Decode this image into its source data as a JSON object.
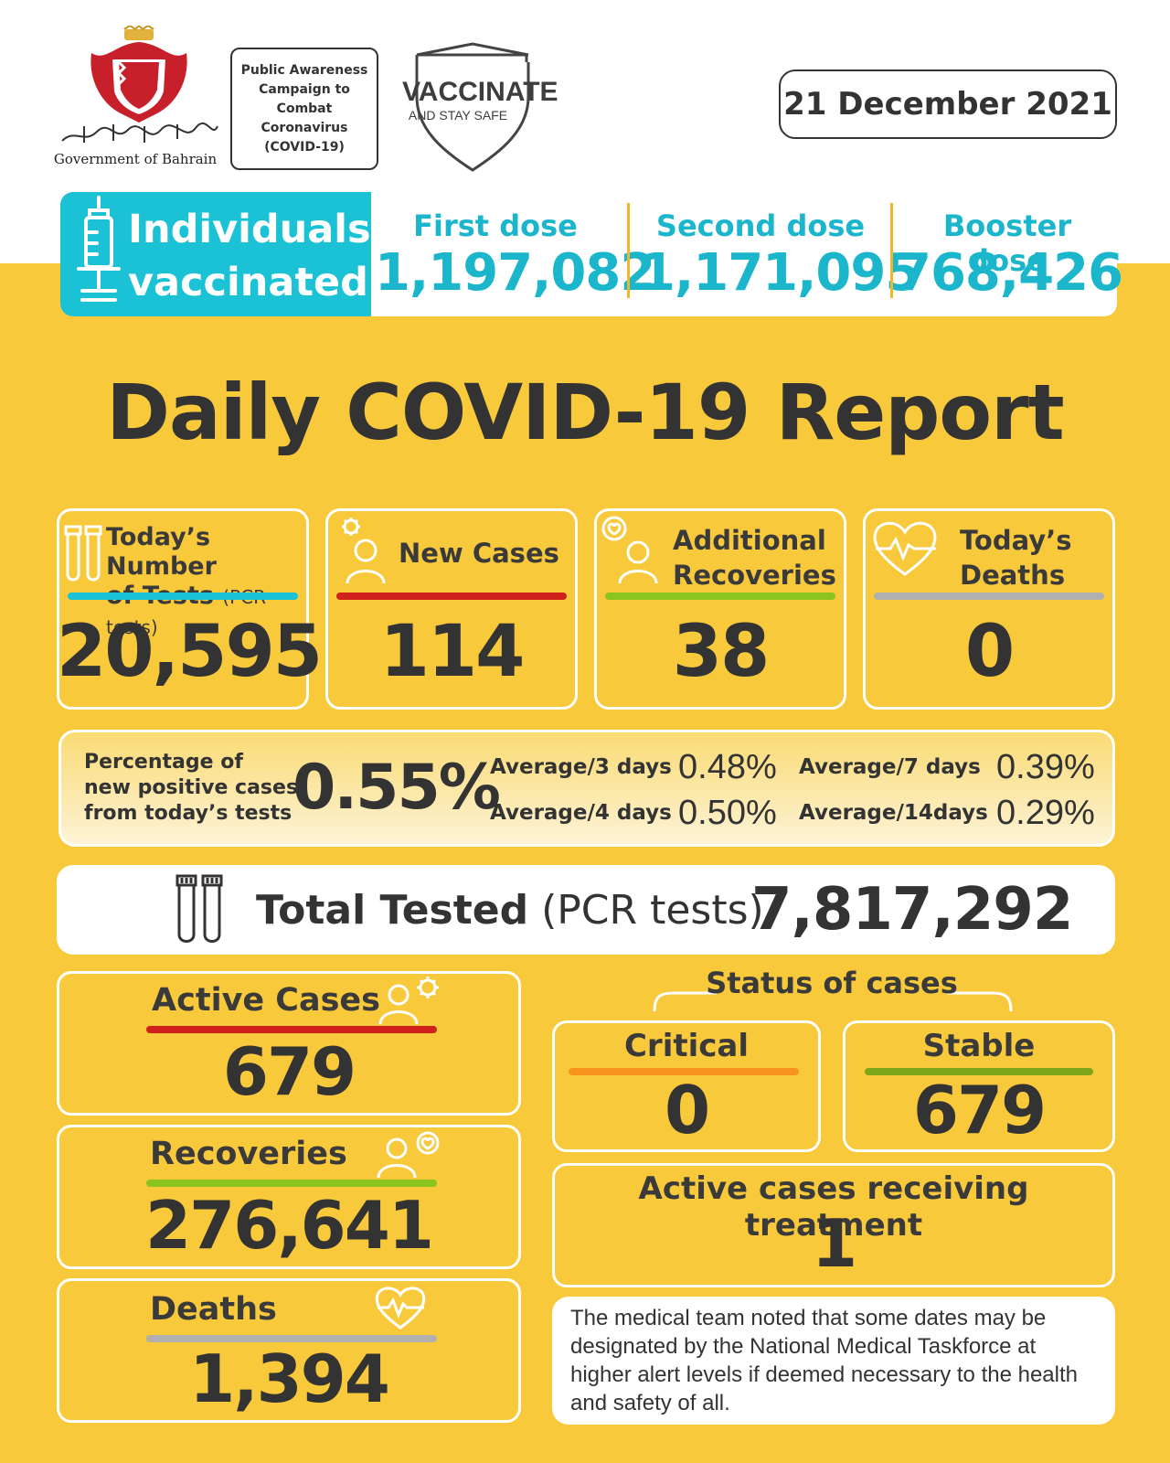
{
  "header": {
    "government_name": "Government of Bahrain",
    "government_name_arabic": "حكومة مملكة البحرين",
    "campaign_text": "Public Awareness Campaign to Combat Coronavirus (COVID-19)",
    "vaccinate_title": "VACCINATE",
    "vaccinate_subtitle": "AND STAY SAFE",
    "date": "21 December 2021"
  },
  "vaccination": {
    "title_line1": "Individuals",
    "title_line2": "vaccinated",
    "first_dose_label": "First dose",
    "first_dose_value": "1,197,082",
    "second_dose_label": "Second dose",
    "second_dose_value": "1,171,095",
    "booster_dose_label": "Booster dose",
    "booster_dose_value": "768,426"
  },
  "report_title": "Daily COVID-19 Report",
  "daily": {
    "tests_label_line1": "Today’s Number",
    "tests_label_line2": "of Tests",
    "tests_label_note": "(PCR tests)",
    "tests_value": "20,595",
    "new_cases_label": "New Cases",
    "new_cases_value": "114",
    "recoveries_label_line1": "Additional",
    "recoveries_label_line2": "Recoveries",
    "recoveries_value": "38",
    "deaths_label_line1": "Today’s",
    "deaths_label_line2": "Deaths",
    "deaths_value": "0"
  },
  "percentage": {
    "label_line1": "Percentage of",
    "label_line2": "new positive cases",
    "label_line3": "from today’s tests",
    "value": "0.55%",
    "avg3_label": "Average/3 days",
    "avg3_value": "0.48%",
    "avg4_label": "Average/4 days",
    "avg4_value": "0.50%",
    "avg7_label": "Average/7 days",
    "avg7_value": "0.39%",
    "avg14_label": "Average/14days",
    "avg14_value": "0.29%"
  },
  "total_tested": {
    "label": "Total Tested",
    "note": "(PCR tests)",
    "value": "7,817,292"
  },
  "totals": {
    "active_label": "Active Cases",
    "active_value": "679",
    "recoveries_label": "Recoveries",
    "recoveries_value": "276,641",
    "deaths_label": "Deaths",
    "deaths_value": "1,394"
  },
  "status": {
    "title": "Status of cases",
    "critical_label": "Critical",
    "critical_value": "0",
    "stable_label": "Stable",
    "stable_value": "679",
    "treatment_label": "Active cases receiving treatment",
    "treatment_value": "1"
  },
  "note": "The medical team noted that some dates may be designated by the National Medical Taskforce at higher alert levels if deemed necessary to the health and safety of all.",
  "colors": {
    "background_yellow": "#f9c93c",
    "accent_cyan": "#1bc2d6",
    "text_dark": "#333333",
    "bar_cyan": "#1bc2d6",
    "bar_red": "#d0201c",
    "bar_green": "#8bc41f",
    "bar_gray": "#b0b0b0",
    "bar_orange": "#f7941d",
    "bar_olive": "#7ea61b"
  }
}
